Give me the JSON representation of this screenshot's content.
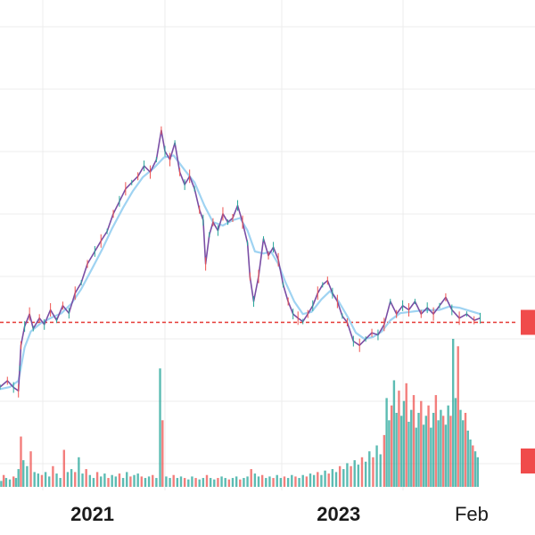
{
  "chart_data": {
    "type": "line",
    "title": "",
    "xlabel": "",
    "ylabel": "",
    "grid": true,
    "colors": {
      "price_line": "#7a4ea5",
      "moving_average": "#9fd3f2",
      "reference_line": "#e53935",
      "volume_up": "#26a69a",
      "volume_down": "#ef5350",
      "price_marker": "#f04b4b",
      "grid": "#ececec"
    },
    "x_tick_labels": [
      {
        "label": "2021",
        "x": 2021.0,
        "bold": true
      },
      {
        "label": "2023",
        "x": 2023.0,
        "bold": true
      },
      {
        "label": "Feb",
        "x": 2024.08,
        "bold": false
      }
    ],
    "xlim": [
      2020.25,
      2024.45
    ],
    "ylim": [
      0,
      100
    ],
    "reference_level": 36.0,
    "price_series": [
      [
        2020.25,
        20.5
      ],
      [
        2020.31,
        22.0
      ],
      [
        2020.36,
        20.4
      ],
      [
        2020.4,
        19.6
      ],
      [
        2020.41,
        25.0
      ],
      [
        2020.42,
        30.5
      ],
      [
        2020.45,
        35.0
      ],
      [
        2020.49,
        38.0
      ],
      [
        2020.52,
        34.5
      ],
      [
        2020.57,
        37.0
      ],
      [
        2020.61,
        35.5
      ],
      [
        2020.66,
        39.0
      ],
      [
        2020.71,
        36.5
      ],
      [
        2020.76,
        40.0
      ],
      [
        2020.81,
        38.2
      ],
      [
        2020.86,
        43.0
      ],
      [
        2020.91,
        45.5
      ],
      [
        2020.96,
        50.0
      ],
      [
        2021.02,
        53.0
      ],
      [
        2021.07,
        55.5
      ],
      [
        2021.12,
        57.8
      ],
      [
        2021.17,
        62.0
      ],
      [
        2021.22,
        65.0
      ],
      [
        2021.27,
        68.0
      ],
      [
        2021.32,
        69.5
      ],
      [
        2021.37,
        71.0
      ],
      [
        2021.42,
        73.5
      ],
      [
        2021.47,
        72.0
      ],
      [
        2021.52,
        75.0
      ],
      [
        2021.56,
        82.0
      ],
      [
        2021.59,
        77.0
      ],
      [
        2021.63,
        75.0
      ],
      [
        2021.67,
        79.0
      ],
      [
        2021.71,
        72.0
      ],
      [
        2021.75,
        69.0
      ],
      [
        2021.79,
        71.0
      ],
      [
        2021.83,
        68.0
      ],
      [
        2021.87,
        63.0
      ],
      [
        2021.9,
        60.5
      ],
      [
        2021.92,
        50.0
      ],
      [
        2021.95,
        57.0
      ],
      [
        2021.98,
        60.0
      ],
      [
        2022.02,
        58.0
      ],
      [
        2022.06,
        62.0
      ],
      [
        2022.1,
        60.0
      ],
      [
        2022.14,
        61.0
      ],
      [
        2022.18,
        64.0
      ],
      [
        2022.22,
        60.0
      ],
      [
        2022.26,
        55.0
      ],
      [
        2022.28,
        47.0
      ],
      [
        2022.31,
        41.0
      ],
      [
        2022.35,
        47.0
      ],
      [
        2022.39,
        56.0
      ],
      [
        2022.43,
        52.0
      ],
      [
        2022.47,
        54.0
      ],
      [
        2022.51,
        51.0
      ],
      [
        2022.55,
        45.0
      ],
      [
        2022.59,
        41.0
      ],
      [
        2022.63,
        38.0
      ],
      [
        2022.67,
        37.0
      ],
      [
        2022.71,
        36.2
      ],
      [
        2022.75,
        38.0
      ],
      [
        2022.79,
        40.0
      ],
      [
        2022.83,
        43.0
      ],
      [
        2022.87,
        45.0
      ],
      [
        2022.91,
        46.0
      ],
      [
        2022.95,
        43.0
      ],
      [
        2022.99,
        41.0
      ],
      [
        2023.03,
        37.5
      ],
      [
        2023.07,
        36.0
      ],
      [
        2023.12,
        31.5
      ],
      [
        2023.17,
        30.5
      ],
      [
        2023.22,
        32.0
      ],
      [
        2023.27,
        33.5
      ],
      [
        2023.32,
        33.0
      ],
      [
        2023.37,
        35.5
      ],
      [
        2023.42,
        41.0
      ],
      [
        2023.47,
        38.0
      ],
      [
        2023.52,
        40.0
      ],
      [
        2023.57,
        39.0
      ],
      [
        2023.62,
        41.0
      ],
      [
        2023.67,
        38.0
      ],
      [
        2023.72,
        39.5
      ],
      [
        2023.77,
        38.0
      ],
      [
        2023.82,
        40.0
      ],
      [
        2023.87,
        42.0
      ],
      [
        2023.92,
        39.0
      ],
      [
        2023.98,
        37.0
      ],
      [
        2024.04,
        38.0
      ],
      [
        2024.1,
        36.5
      ],
      [
        2024.15,
        37.0
      ]
    ],
    "moving_average_series": [
      [
        2020.25,
        20.0
      ],
      [
        2020.33,
        20.5
      ],
      [
        2020.4,
        22.0
      ],
      [
        2020.45,
        30.0
      ],
      [
        2020.5,
        33.8
      ],
      [
        2020.58,
        35.8
      ],
      [
        2020.66,
        37.0
      ],
      [
        2020.75,
        38.2
      ],
      [
        2020.83,
        40.5
      ],
      [
        2020.91,
        44.0
      ],
      [
        2021.0,
        49.0
      ],
      [
        2021.08,
        53.5
      ],
      [
        2021.16,
        58.5
      ],
      [
        2021.25,
        63.5
      ],
      [
        2021.33,
        67.5
      ],
      [
        2021.41,
        70.8
      ],
      [
        2021.5,
        73.0
      ],
      [
        2021.58,
        75.5
      ],
      [
        2021.66,
        76.0
      ],
      [
        2021.75,
        72.5
      ],
      [
        2021.83,
        69.5
      ],
      [
        2021.91,
        64.0
      ],
      [
        2021.98,
        60.0
      ],
      [
        2022.06,
        59.2
      ],
      [
        2022.14,
        60.5
      ],
      [
        2022.2,
        61.0
      ],
      [
        2022.26,
        58.0
      ],
      [
        2022.32,
        53.0
      ],
      [
        2022.39,
        52.5
      ],
      [
        2022.45,
        53.0
      ],
      [
        2022.51,
        50.0
      ],
      [
        2022.57,
        45.5
      ],
      [
        2022.64,
        41.0
      ],
      [
        2022.71,
        38.0
      ],
      [
        2022.78,
        38.5
      ],
      [
        2022.86,
        41.5
      ],
      [
        2022.93,
        43.5
      ],
      [
        2023.0,
        41.0
      ],
      [
        2023.07,
        37.5
      ],
      [
        2023.14,
        33.5
      ],
      [
        2023.21,
        32.0
      ],
      [
        2023.28,
        32.5
      ],
      [
        2023.35,
        33.8
      ],
      [
        2023.42,
        36.5
      ],
      [
        2023.5,
        38.2
      ],
      [
        2023.58,
        38.5
      ],
      [
        2023.66,
        38.8
      ],
      [
        2023.74,
        38.9
      ],
      [
        2023.82,
        39.0
      ],
      [
        2023.9,
        39.8
      ],
      [
        2023.98,
        39.5
      ],
      [
        2024.06,
        38.8
      ],
      [
        2024.15,
        38.0
      ]
    ],
    "volume": [
      [
        2020.26,
        4
      ],
      [
        2020.28,
        8
      ],
      [
        2020.3,
        6
      ],
      [
        2020.33,
        5
      ],
      [
        2020.36,
        7
      ],
      [
        2020.38,
        6
      ],
      [
        2020.4,
        12
      ],
      [
        2020.42,
        34
      ],
      [
        2020.44,
        18
      ],
      [
        2020.47,
        14
      ],
      [
        2020.5,
        24
      ],
      [
        2020.53,
        10
      ],
      [
        2020.56,
        9
      ],
      [
        2020.59,
        8
      ],
      [
        2020.62,
        10
      ],
      [
        2020.65,
        7
      ],
      [
        2020.68,
        14
      ],
      [
        2020.71,
        9
      ],
      [
        2020.74,
        6
      ],
      [
        2020.77,
        25
      ],
      [
        2020.8,
        10
      ],
      [
        2020.83,
        12
      ],
      [
        2020.86,
        10
      ],
      [
        2020.89,
        20
      ],
      [
        2020.92,
        9
      ],
      [
        2020.95,
        12
      ],
      [
        2020.98,
        8
      ],
      [
        2021.01,
        6
      ],
      [
        2021.04,
        10
      ],
      [
        2021.07,
        7
      ],
      [
        2021.1,
        9
      ],
      [
        2021.13,
        6
      ],
      [
        2021.16,
        8
      ],
      [
        2021.19,
        7
      ],
      [
        2021.22,
        9
      ],
      [
        2021.25,
        6
      ],
      [
        2021.28,
        10
      ],
      [
        2021.31,
        7
      ],
      [
        2021.34,
        8
      ],
      [
        2021.37,
        9
      ],
      [
        2021.4,
        7
      ],
      [
        2021.43,
        6
      ],
      [
        2021.46,
        7
      ],
      [
        2021.49,
        8
      ],
      [
        2021.52,
        6
      ],
      [
        2021.55,
        80
      ],
      [
        2021.57,
        45
      ],
      [
        2021.6,
        7
      ],
      [
        2021.63,
        6
      ],
      [
        2021.66,
        8
      ],
      [
        2021.69,
        6
      ],
      [
        2021.72,
        7
      ],
      [
        2021.75,
        6
      ],
      [
        2021.78,
        5
      ],
      [
        2021.81,
        7
      ],
      [
        2021.84,
        6
      ],
      [
        2021.87,
        5
      ],
      [
        2021.9,
        6
      ],
      [
        2021.93,
        8
      ],
      [
        2021.96,
        6
      ],
      [
        2021.99,
        5
      ],
      [
        2022.02,
        6
      ],
      [
        2022.05,
        7
      ],
      [
        2022.08,
        6
      ],
      [
        2022.11,
        5
      ],
      [
        2022.14,
        6
      ],
      [
        2022.17,
        7
      ],
      [
        2022.2,
        5
      ],
      [
        2022.23,
        6
      ],
      [
        2022.26,
        7
      ],
      [
        2022.29,
        12
      ],
      [
        2022.32,
        9
      ],
      [
        2022.35,
        7
      ],
      [
        2022.38,
        8
      ],
      [
        2022.41,
        6
      ],
      [
        2022.44,
        7
      ],
      [
        2022.47,
        6
      ],
      [
        2022.5,
        8
      ],
      [
        2022.53,
        6
      ],
      [
        2022.56,
        7
      ],
      [
        2022.59,
        6
      ],
      [
        2022.62,
        8
      ],
      [
        2022.65,
        7
      ],
      [
        2022.68,
        6
      ],
      [
        2022.71,
        8
      ],
      [
        2022.74,
        7
      ],
      [
        2022.77,
        9
      ],
      [
        2022.8,
        8
      ],
      [
        2022.83,
        10
      ],
      [
        2022.86,
        8
      ],
      [
        2022.89,
        11
      ],
      [
        2022.92,
        9
      ],
      [
        2022.95,
        12
      ],
      [
        2022.98,
        10
      ],
      [
        2023.01,
        14
      ],
      [
        2023.04,
        12
      ],
      [
        2023.07,
        16
      ],
      [
        2023.1,
        14
      ],
      [
        2023.13,
        18
      ],
      [
        2023.16,
        15
      ],
      [
        2023.19,
        20
      ],
      [
        2023.22,
        17
      ],
      [
        2023.25,
        24
      ],
      [
        2023.28,
        20
      ],
      [
        2023.31,
        28
      ],
      [
        2023.34,
        22
      ],
      [
        2023.37,
        35
      ],
      [
        2023.39,
        60
      ],
      [
        2023.41,
        45
      ],
      [
        2023.43,
        55
      ],
      [
        2023.45,
        72
      ],
      [
        2023.47,
        50
      ],
      [
        2023.49,
        65
      ],
      [
        2023.51,
        48
      ],
      [
        2023.53,
        58
      ],
      [
        2023.55,
        70
      ],
      [
        2023.57,
        44
      ],
      [
        2023.59,
        52
      ],
      [
        2023.61,
        62
      ],
      [
        2023.63,
        40
      ],
      [
        2023.65,
        50
      ],
      [
        2023.67,
        58
      ],
      [
        2023.69,
        42
      ],
      [
        2023.71,
        48
      ],
      [
        2023.73,
        55
      ],
      [
        2023.75,
        40
      ],
      [
        2023.77,
        50
      ],
      [
        2023.79,
        62
      ],
      [
        2023.81,
        45
      ],
      [
        2023.83,
        52
      ],
      [
        2023.85,
        48
      ],
      [
        2023.87,
        42
      ],
      [
        2023.89,
        55
      ],
      [
        2023.91,
        48
      ],
      [
        2023.93,
        100
      ],
      [
        2023.95,
        60
      ],
      [
        2023.97,
        95
      ],
      [
        2023.99,
        52
      ],
      [
        2024.01,
        45
      ],
      [
        2024.03,
        50
      ],
      [
        2024.05,
        38
      ],
      [
        2024.07,
        32
      ],
      [
        2024.09,
        28
      ],
      [
        2024.11,
        24
      ],
      [
        2024.13,
        20
      ]
    ]
  }
}
